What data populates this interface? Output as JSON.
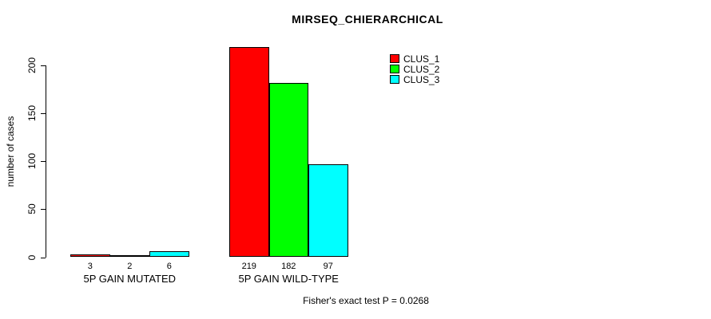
{
  "chart_data": {
    "type": "bar",
    "title": "MIRSEQ_CHIERARCHICAL",
    "ylabel": "number of cases",
    "xlabel": "",
    "categories": [
      "5P GAIN MUTATED",
      "5P GAIN WILD-TYPE"
    ],
    "series": [
      {
        "name": "CLUS_1",
        "color": "#ff0000",
        "values": [
          3,
          219
        ]
      },
      {
        "name": "CLUS_2",
        "color": "#00ff00",
        "values": [
          2,
          182
        ]
      },
      {
        "name": "CLUS_3",
        "color": "#00ffff",
        "values": [
          6,
          97
        ]
      }
    ],
    "yticks": [
      0,
      50,
      100,
      150,
      200
    ],
    "ylim": [
      0,
      220
    ],
    "grid": false,
    "legend_position": "top-right",
    "bar_value_labels_shown": true,
    "annotation": "Fisher's exact test P = 0.0268"
  }
}
